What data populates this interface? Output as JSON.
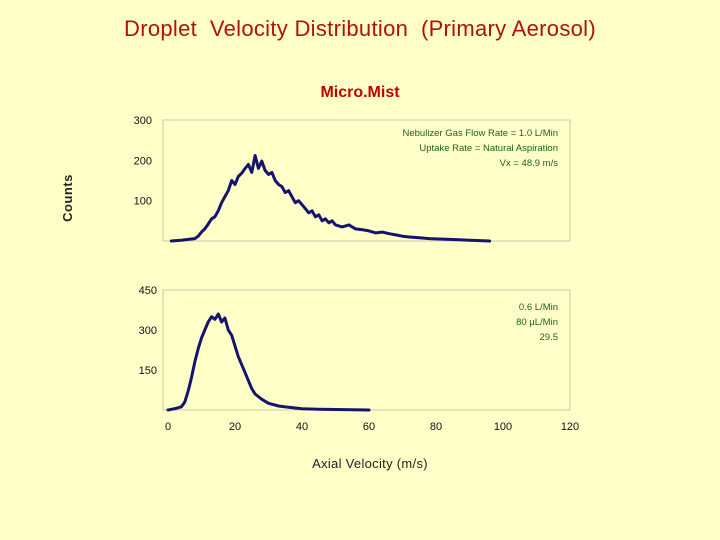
{
  "page": {
    "title": "Droplet  Velocity Distribution  (Primary Aerosol)",
    "subtitle": "Micro.Mist",
    "ylabel": "Counts",
    "xlabel": "Axial Velocity (m/s)",
    "colors": {
      "background": "#ffffc8",
      "title": "#b01010",
      "line": "#14146e",
      "annotation": "#1f5f1f"
    }
  },
  "chart_data": [
    {
      "type": "line",
      "x_ticks": [],
      "y_ticks": [
        100,
        200,
        300
      ],
      "xlim": [
        0,
        120
      ],
      "ylim": [
        0,
        300
      ],
      "annotations": [
        "Nebulizer Gas Flow Rate = 1.0 L/Min",
        "Uptake Rate = Natural Aspiration",
        "Vx = 48.9 m/s"
      ],
      "series": [
        {
          "x": [
            1,
            4,
            6,
            8,
            9,
            10,
            11,
            12,
            13,
            14,
            15,
            16,
            17,
            18,
            19,
            20,
            21,
            22,
            23,
            24,
            25,
            26,
            27,
            28,
            29,
            30,
            31,
            32,
            33,
            34,
            35,
            36,
            37,
            38,
            39,
            40,
            41,
            42,
            43,
            44,
            45,
            46,
            47,
            48,
            49,
            50,
            52,
            54,
            56,
            58,
            60,
            62,
            64,
            66,
            68,
            70,
            72,
            75,
            78,
            81,
            84,
            87,
            90,
            93,
            96
          ],
          "y": [
            0,
            2,
            4,
            6,
            12,
            22,
            30,
            42,
            55,
            60,
            75,
            95,
            110,
            125,
            150,
            140,
            160,
            168,
            180,
            190,
            170,
            212,
            180,
            198,
            175,
            165,
            170,
            150,
            140,
            135,
            120,
            125,
            110,
            95,
            100,
            90,
            80,
            70,
            75,
            60,
            65,
            50,
            55,
            45,
            50,
            40,
            35,
            40,
            30,
            28,
            25,
            20,
            22,
            18,
            15,
            12,
            10,
            8,
            6,
            5,
            4,
            3,
            2,
            1,
            0
          ]
        }
      ]
    },
    {
      "type": "line",
      "x_ticks": [
        0,
        20,
        40,
        60,
        80,
        100,
        120
      ],
      "y_ticks": [
        150,
        300,
        450
      ],
      "xlim": [
        0,
        120
      ],
      "ylim": [
        0,
        450
      ],
      "annotations": [
        "0.6 L/Min",
        "80 µL/Min",
        "29.5"
      ],
      "series": [
        {
          "x": [
            0,
            2,
            4,
            5,
            6,
            7,
            8,
            9,
            10,
            11,
            12,
            13,
            14,
            15,
            16,
            17,
            18,
            19,
            20,
            21,
            22,
            23,
            24,
            25,
            26,
            28,
            30,
            33,
            36,
            40,
            45,
            50,
            55,
            60
          ],
          "y": [
            0,
            5,
            12,
            30,
            70,
            120,
            180,
            230,
            270,
            300,
            330,
            350,
            340,
            360,
            330,
            345,
            300,
            280,
            240,
            200,
            170,
            140,
            110,
            80,
            60,
            40,
            25,
            15,
            10,
            5,
            3,
            2,
            1,
            0
          ]
        }
      ]
    }
  ]
}
